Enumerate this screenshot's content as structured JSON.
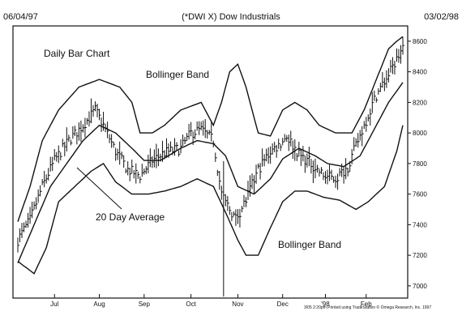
{
  "header": {
    "start_date": "06/04/97",
    "title": "(*DWI X) Dow Industrials",
    "end_date": "03/02/98"
  },
  "annotations": {
    "chart_type_label": "Daily Bar Chart",
    "upper_band": "Bollinger Band",
    "middle_band": "20 Day Average",
    "lower_band": "Bollinger Band"
  },
  "footer": {
    "credit": "3/05  2:20pm Printed using TradeStation © Omega Research, Inc. 1997"
  },
  "chart_data": {
    "type": "bar",
    "style": "ohlc-bars-with-bollinger-bands",
    "title": "(*DWI X) Dow Industrials",
    "subtitle": "Daily Bar Chart",
    "date_range": [
      "06/04/97",
      "03/02/98"
    ],
    "x_tick_labels": [
      "Jul",
      "Aug",
      "Sep",
      "Oct",
      "Nov",
      "Dec",
      "'98",
      "Feb"
    ],
    "x_tick_index": [
      18,
      40,
      62,
      85,
      108,
      130,
      151,
      171
    ],
    "y_tick_labels": [
      "8600",
      "8400",
      "8200",
      "8000",
      "7800",
      "7600",
      "7400",
      "7200",
      "7000"
    ],
    "ylim": [
      6920,
      8700
    ],
    "y_axis_side": "right",
    "grid": false,
    "bars": {
      "count": 190,
      "close_anchors": [
        [
          0,
          7300
        ],
        [
          6,
          7430
        ],
        [
          12,
          7650
        ],
        [
          18,
          7820
        ],
        [
          25,
          7950
        ],
        [
          32,
          8050
        ],
        [
          38,
          8150
        ],
        [
          42,
          8050
        ],
        [
          48,
          7880
        ],
        [
          54,
          7760
        ],
        [
          60,
          7720
        ],
        [
          66,
          7820
        ],
        [
          72,
          7870
        ],
        [
          80,
          7900
        ],
        [
          85,
          8000
        ],
        [
          90,
          8020
        ],
        [
          96,
          7950
        ],
        [
          100,
          7600
        ],
        [
          104,
          7500
        ],
        [
          107,
          7440
        ],
        [
          112,
          7560
        ],
        [
          118,
          7760
        ],
        [
          124,
          7880
        ],
        [
          128,
          7920
        ],
        [
          132,
          7980
        ],
        [
          138,
          7860
        ],
        [
          144,
          7800
        ],
        [
          150,
          7720
        ],
        [
          156,
          7700
        ],
        [
          162,
          7780
        ],
        [
          170,
          8050
        ],
        [
          176,
          8250
        ],
        [
          182,
          8380
        ],
        [
          186,
          8480
        ],
        [
          189,
          8560
        ]
      ]
    },
    "series": [
      {
        "name": "Bollinger Band",
        "role": "upper",
        "points": [
          [
            0,
            7420
          ],
          [
            6,
            7650
          ],
          [
            12,
            7950
          ],
          [
            20,
            8150
          ],
          [
            30,
            8300
          ],
          [
            40,
            8350
          ],
          [
            50,
            8300
          ],
          [
            56,
            8200
          ],
          [
            60,
            8000
          ],
          [
            66,
            8000
          ],
          [
            72,
            8050
          ],
          [
            80,
            8150
          ],
          [
            90,
            8200
          ],
          [
            96,
            8050
          ],
          [
            100,
            8200
          ],
          [
            104,
            8400
          ],
          [
            108,
            8450
          ],
          [
            112,
            8300
          ],
          [
            118,
            8000
          ],
          [
            124,
            7980
          ],
          [
            130,
            8150
          ],
          [
            136,
            8200
          ],
          [
            142,
            8150
          ],
          [
            148,
            8050
          ],
          [
            156,
            8000
          ],
          [
            164,
            8000
          ],
          [
            170,
            8150
          ],
          [
            176,
            8350
          ],
          [
            182,
            8550
          ],
          [
            186,
            8600
          ],
          [
            189,
            8630
          ]
        ]
      },
      {
        "name": "20 Day Average",
        "role": "middle",
        "points": [
          [
            0,
            7150
          ],
          [
            8,
            7400
          ],
          [
            16,
            7650
          ],
          [
            24,
            7800
          ],
          [
            32,
            7950
          ],
          [
            40,
            8050
          ],
          [
            48,
            8000
          ],
          [
            56,
            7900
          ],
          [
            62,
            7820
          ],
          [
            70,
            7820
          ],
          [
            80,
            7900
          ],
          [
            88,
            7950
          ],
          [
            96,
            7930
          ],
          [
            102,
            7850
          ],
          [
            108,
            7650
          ],
          [
            116,
            7600
          ],
          [
            124,
            7700
          ],
          [
            130,
            7830
          ],
          [
            138,
            7900
          ],
          [
            146,
            7850
          ],
          [
            152,
            7800
          ],
          [
            160,
            7780
          ],
          [
            168,
            7850
          ],
          [
            176,
            8050
          ],
          [
            182,
            8200
          ],
          [
            189,
            8330
          ]
        ]
      },
      {
        "name": "Bollinger Band",
        "role": "lower",
        "points": [
          [
            0,
            7160
          ],
          [
            8,
            7080
          ],
          [
            14,
            7250
          ],
          [
            20,
            7550
          ],
          [
            28,
            7650
          ],
          [
            36,
            7750
          ],
          [
            42,
            7800
          ],
          [
            48,
            7680
          ],
          [
            56,
            7600
          ],
          [
            64,
            7600
          ],
          [
            72,
            7620
          ],
          [
            80,
            7650
          ],
          [
            88,
            7700
          ],
          [
            96,
            7650
          ],
          [
            102,
            7480
          ],
          [
            108,
            7300
          ],
          [
            112,
            7200
          ],
          [
            118,
            7200
          ],
          [
            124,
            7380
          ],
          [
            130,
            7550
          ],
          [
            136,
            7620
          ],
          [
            142,
            7620
          ],
          [
            150,
            7580
          ],
          [
            158,
            7560
          ],
          [
            166,
            7500
          ],
          [
            172,
            7550
          ],
          [
            180,
            7650
          ],
          [
            186,
            7880
          ],
          [
            189,
            8050
          ]
        ]
      }
    ]
  }
}
